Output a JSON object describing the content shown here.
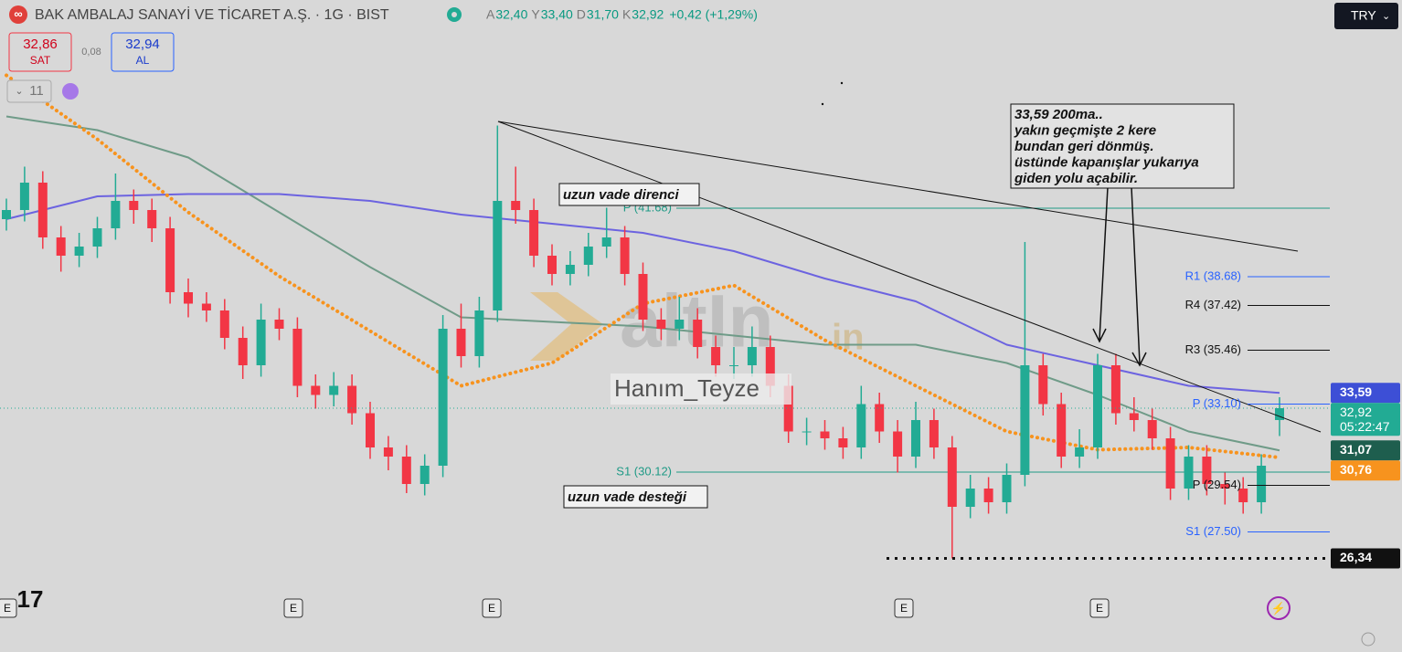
{
  "header": {
    "title": "BAK AMBALAJ SANAYİ VE TİCARET A.Ş. · 1G · BIST",
    "ohlc": [
      {
        "key": "A",
        "value": "32,40"
      },
      {
        "key": "Y",
        "value": "33,40"
      },
      {
        "key": "D",
        "value": "31,70"
      },
      {
        "key": "K",
        "value": "32,92"
      }
    ],
    "change": "+0,42 (+1,29%)",
    "sell": {
      "price": "32,86",
      "label": "SAT"
    },
    "spread": "0,08",
    "buy": {
      "price": "32,94",
      "label": "AL"
    },
    "indicator_count": "11",
    "currency": "TRY"
  },
  "chart_data": {
    "type": "candlestick",
    "up_color": "#22ab94",
    "down_color": "#f23645",
    "ylim": [
      25.2,
      50.8
    ],
    "candles": [
      [
        41.2,
        42.1,
        40.7,
        41.6
      ],
      [
        41.6,
        43.5,
        41.1,
        42.8
      ],
      [
        42.8,
        43.3,
        39.9,
        40.4
      ],
      [
        40.4,
        40.9,
        38.9,
        39.6
      ],
      [
        39.6,
        40.6,
        39.1,
        40.0
      ],
      [
        40.0,
        41.3,
        39.5,
        40.8
      ],
      [
        40.8,
        43.2,
        40.3,
        42.0
      ],
      [
        42.0,
        42.5,
        41.0,
        41.6
      ],
      [
        41.6,
        42.1,
        40.2,
        40.8
      ],
      [
        40.8,
        41.3,
        37.5,
        38.0
      ],
      [
        38.0,
        38.6,
        36.9,
        37.5
      ],
      [
        37.5,
        38.0,
        36.7,
        37.2
      ],
      [
        37.2,
        37.7,
        35.5,
        36.0
      ],
      [
        36.0,
        36.5,
        34.2,
        34.8
      ],
      [
        34.8,
        37.5,
        34.3,
        36.8
      ],
      [
        36.8,
        37.3,
        35.9,
        36.4
      ],
      [
        36.4,
        36.9,
        33.4,
        33.9
      ],
      [
        33.9,
        34.4,
        32.9,
        33.5
      ],
      [
        33.5,
        34.5,
        33.0,
        33.9
      ],
      [
        33.9,
        34.4,
        32.2,
        32.7
      ],
      [
        32.7,
        33.2,
        30.7,
        31.2
      ],
      [
        31.2,
        31.7,
        30.2,
        30.8
      ],
      [
        30.8,
        31.3,
        29.2,
        29.6
      ],
      [
        29.6,
        30.9,
        29.1,
        30.4
      ],
      [
        30.4,
        37.0,
        29.9,
        36.4
      ],
      [
        36.4,
        37.5,
        34.7,
        35.2
      ],
      [
        35.2,
        37.8,
        34.7,
        37.2
      ],
      [
        37.2,
        45.3,
        36.7,
        42.0
      ],
      [
        42.0,
        43.5,
        41.0,
        41.6
      ],
      [
        41.6,
        42.1,
        39.1,
        39.6
      ],
      [
        39.6,
        40.1,
        38.3,
        38.8
      ],
      [
        38.8,
        39.8,
        38.3,
        39.2
      ],
      [
        39.2,
        40.6,
        38.7,
        40.0
      ],
      [
        40.0,
        41.7,
        39.5,
        40.4
      ],
      [
        40.4,
        40.9,
        38.3,
        38.8
      ],
      [
        38.8,
        39.3,
        36.3,
        36.8
      ],
      [
        36.8,
        37.3,
        35.9,
        36.4
      ],
      [
        36.4,
        37.8,
        35.9,
        36.8
      ],
      [
        36.8,
        37.3,
        35.1,
        35.6
      ],
      [
        35.6,
        36.1,
        34.3,
        34.8
      ],
      [
        34.8,
        35.6,
        34.2,
        34.8
      ],
      [
        34.8,
        36.5,
        34.3,
        35.6
      ],
      [
        35.6,
        36.1,
        33.4,
        33.9
      ],
      [
        33.9,
        34.4,
        31.4,
        31.9
      ],
      [
        31.9,
        32.5,
        31.3,
        31.9
      ],
      [
        31.9,
        32.4,
        31.1,
        31.6
      ],
      [
        31.6,
        32.1,
        30.7,
        31.2
      ],
      [
        31.2,
        33.9,
        30.7,
        33.1
      ],
      [
        33.1,
        33.6,
        31.4,
        31.9
      ],
      [
        31.9,
        32.4,
        30.1,
        30.8
      ],
      [
        30.8,
        33.2,
        30.3,
        32.4
      ],
      [
        32.4,
        32.9,
        30.7,
        31.2
      ],
      [
        31.2,
        31.7,
        26.34,
        28.6
      ],
      [
        28.6,
        30.0,
        28.1,
        29.4
      ],
      [
        29.4,
        29.9,
        28.3,
        28.8
      ],
      [
        28.8,
        30.5,
        28.3,
        30.0
      ],
      [
        30.0,
        40.2,
        29.5,
        34.8
      ],
      [
        34.8,
        35.3,
        32.6,
        33.1
      ],
      [
        33.1,
        33.6,
        30.3,
        30.8
      ],
      [
        30.8,
        32.0,
        30.3,
        31.2
      ],
      [
        31.2,
        35.3,
        30.7,
        34.8
      ],
      [
        34.8,
        35.3,
        32.2,
        32.7
      ],
      [
        32.7,
        33.4,
        31.9,
        32.4
      ],
      [
        32.4,
        32.9,
        31.1,
        31.6
      ],
      [
        31.6,
        32.1,
        28.9,
        29.4
      ],
      [
        29.4,
        31.3,
        28.9,
        30.8
      ],
      [
        30.8,
        31.3,
        29.1,
        29.6
      ],
      [
        29.6,
        30.1,
        28.7,
        29.4
      ],
      [
        29.4,
        29.9,
        28.3,
        28.8
      ],
      [
        28.8,
        30.9,
        28.3,
        30.4
      ],
      [
        32.4,
        33.4,
        31.7,
        32.92
      ]
    ],
    "ma_x": [
      0,
      5,
      10,
      15,
      20,
      25,
      30,
      35,
      40,
      45,
      50,
      55,
      60,
      65,
      70
    ],
    "series": [
      {
        "color": "#6f9b88",
        "values": [
          45.7,
          45.1,
          43.9,
          41.5,
          39.1,
          36.9,
          36.7,
          36.5,
          36.1,
          35.7,
          35.7,
          34.9,
          33.5,
          31.9,
          31.07
        ]
      },
      {
        "color": "#6c63e0",
        "values": [
          41.2,
          42.2,
          42.3,
          42.3,
          42.0,
          41.4,
          41.0,
          40.6,
          39.8,
          38.6,
          37.6,
          35.7,
          34.8,
          33.9,
          33.59
        ]
      },
      {
        "color": "#f7931e",
        "dotted": true,
        "values": [
          47.5,
          44.7,
          41.5,
          38.7,
          36.3,
          33.9,
          34.9,
          37.5,
          38.3,
          35.9,
          33.9,
          31.9,
          31.1,
          31.2,
          30.76
        ]
      }
    ],
    "pivots_long": [
      {
        "value": 41.68,
        "label": "P (41.68)",
        "color": "#1f9a86"
      },
      {
        "value": 30.12,
        "label": "S1 (30.12)",
        "color": "#1f9a86"
      }
    ],
    "pivots_short": [
      {
        "value": 38.68,
        "label": "R1 (38.68)",
        "color": "#2962ff"
      },
      {
        "value": 37.42,
        "label": "R4 (37.42)",
        "color": "#111111"
      },
      {
        "value": 35.46,
        "label": "R3 (35.46)",
        "color": "#111111"
      },
      {
        "value": 33.1,
        "label": "P (33.10)",
        "color": "#2962ff"
      },
      {
        "value": 29.54,
        "label": "P (29.54)",
        "color": "#111111"
      },
      {
        "value": 27.5,
        "label": "S1 (27.50)",
        "color": "#2962ff"
      }
    ],
    "price_labels": [
      {
        "value": 33.59,
        "label": "33,59",
        "color": "#3d4fd6"
      },
      {
        "value": 32.92,
        "label": "32,92",
        "time": "05:22:47",
        "color": "#22ab94"
      },
      {
        "value": 31.07,
        "label": "31,07",
        "color": "#1e5e4e"
      },
      {
        "value": 30.76,
        "label": "30,76",
        "color": "#f7931e"
      },
      {
        "value": 26.34,
        "label": "26,34",
        "color": "#111111",
        "dotted": true
      }
    ],
    "annotations": {
      "resistance": "uzun vade direnci",
      "support": "uzun vade desteği",
      "note": [
        "33,59 200ma..",
        "yakın geçmişte 2 kere",
        "bundan geri dönmüş.",
        "üstünde kapanışlar yukarıya",
        "giden yolu açabilir."
      ]
    },
    "watermark": {
      "author": "Hanım_Teyze",
      "logo": "altIn",
      "logo_suffix": "in"
    },
    "event_marker": "E"
  }
}
